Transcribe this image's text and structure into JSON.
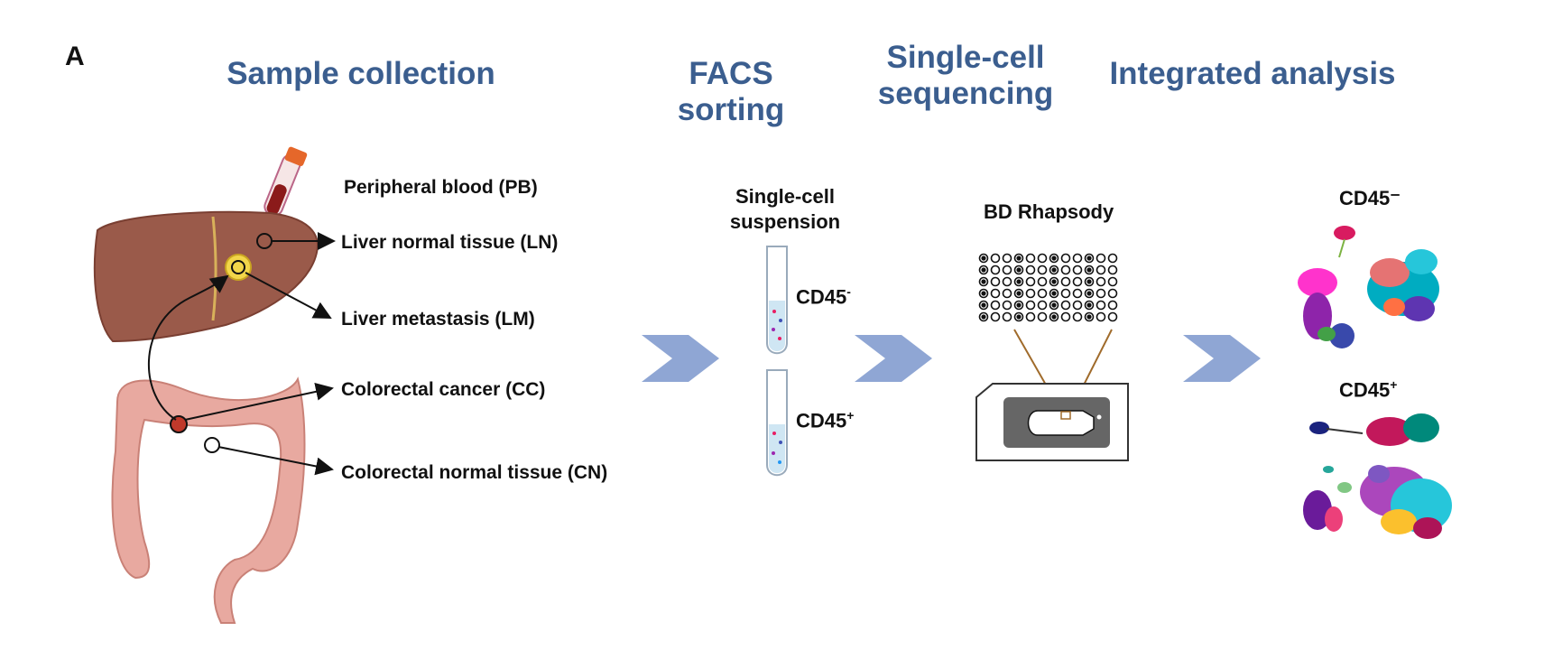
{
  "panel_label": "A",
  "steps": {
    "sample_collection": "Sample collection",
    "facs_sorting": "FACS sorting",
    "single_cell_line1": "Single-cell",
    "single_cell_line2": "sequencing",
    "integrated_analysis": "Integrated analysis"
  },
  "samples": {
    "pb": "Peripheral blood (PB)",
    "ln": "Liver normal tissue (LN)",
    "lm": "Liver metastasis (LM)",
    "cc": "Colorectal cancer (CC)",
    "cn": "Colorectal normal tissue (CN)"
  },
  "facs": {
    "suspension_line1": "Single-cell",
    "suspension_line2": "suspension",
    "tube1_base": "CD45",
    "tube1_sup": "-",
    "tube2_base": "CD45",
    "tube2_sup": "+"
  },
  "sequencing": {
    "platform": "BD Rhapsody"
  },
  "analysis": {
    "umap1_label": "CD45⁻",
    "umap2_label_base": "CD45",
    "umap2_label_sup": "+"
  },
  "colors": {
    "step_title": "#3b5e8f",
    "chevron": "#8fa6d4",
    "liver": "#9a5a4a",
    "colon": "#e8a9a0",
    "tube_fill": "#cfe6f3"
  }
}
